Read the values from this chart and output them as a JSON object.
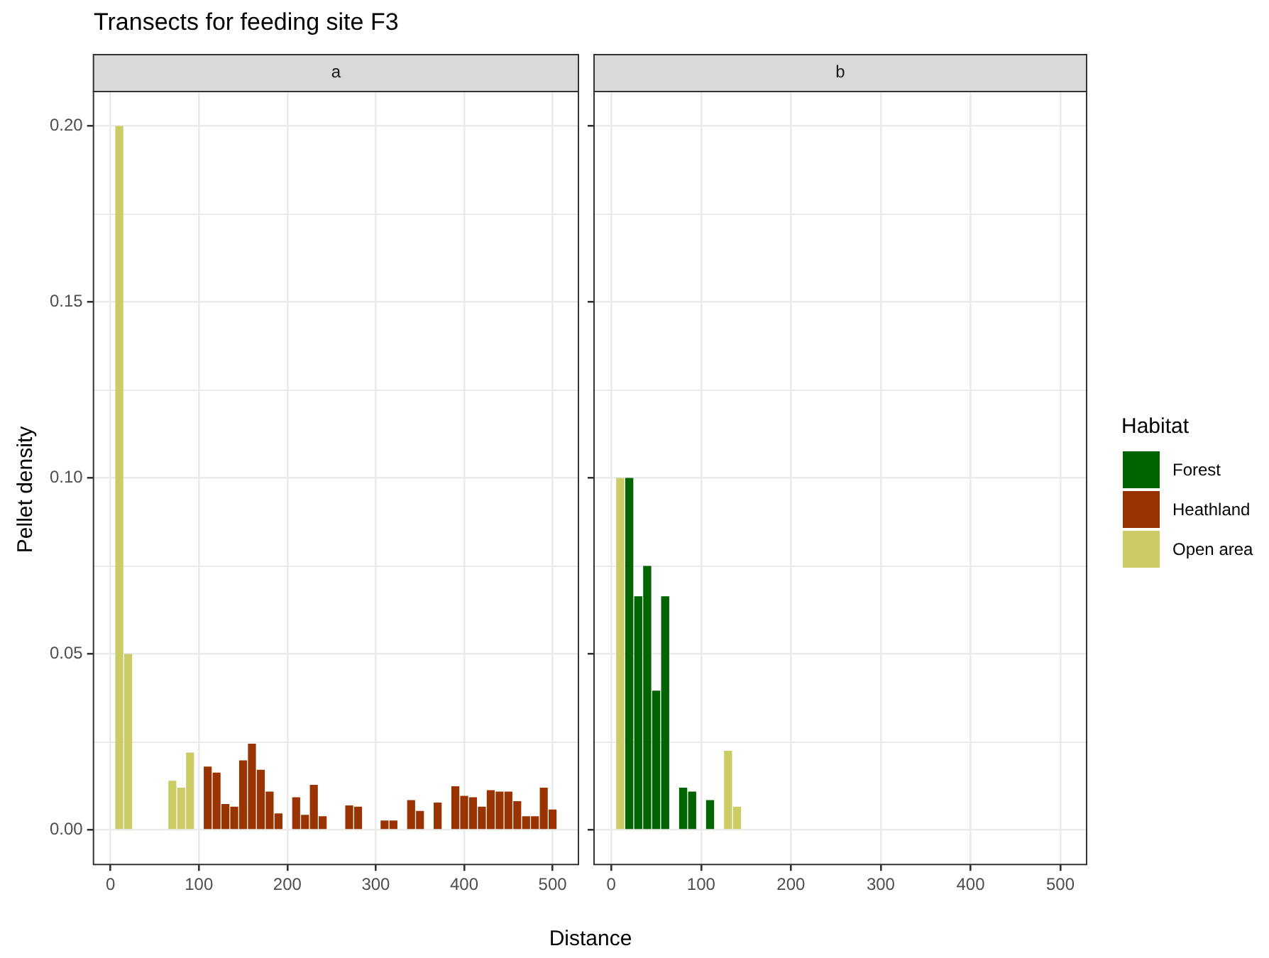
{
  "chart_data": [
    {
      "type": "bar",
      "title": "Transects for feeding site F3",
      "subtitle": "a",
      "xlabel": "Distance",
      "ylabel": "Pellet density",
      "grid": true,
      "legend": "right",
      "legend_title": "Habitat",
      "xlim": [
        -20,
        530
      ],
      "xticks": [
        0,
        100,
        200,
        300,
        400,
        500
      ],
      "ylim": [
        -0.01,
        0.21
      ],
      "yticks": [
        {
          "value": 0,
          "label": "0.00"
        },
        {
          "value": 0.025,
          "label": null
        },
        {
          "value": 0.05,
          "label": "0.05"
        },
        {
          "value": 0.075,
          "label": null
        },
        {
          "value": 0.1,
          "label": "0.10"
        },
        {
          "value": 0.125,
          "label": null
        },
        {
          "value": 0.15,
          "label": "0.15"
        },
        {
          "value": 0.175,
          "label": null
        },
        {
          "value": 0.2,
          "label": "0.20"
        }
      ],
      "series": [
        {
          "name": "Heathland",
          "color": "#993300",
          "x": [
            110,
            120,
            130,
            140,
            150,
            160,
            170,
            180,
            190,
            210,
            220,
            230,
            240,
            270,
            280,
            310,
            320,
            340,
            350,
            370,
            390,
            400,
            410,
            420,
            430,
            440,
            450,
            460,
            470,
            480,
            490,
            500
          ],
          "values": [
            0.018,
            0.0163,
            0.0074,
            0.0066,
            0.0198,
            0.0245,
            0.0171,
            0.0109,
            0.0047,
            0.0093,
            0.0043,
            0.0128,
            0.0039,
            0.007,
            0.0066,
            0.0027,
            0.0027,
            0.0085,
            0.0054,
            0.0078,
            0.0124,
            0.0097,
            0.0093,
            0.0066,
            0.0113,
            0.0109,
            0.0109,
            0.0082,
            0.0039,
            0.0039,
            0.012,
            0.0058
          ]
        },
        {
          "name": "Open area",
          "color": "#cccc66",
          "x": [
            10,
            20,
            70,
            80,
            90
          ],
          "values": [
            0.2,
            0.05,
            0.014,
            0.012,
            0.022
          ]
        }
      ]
    },
    {
      "type": "bar",
      "subtitle": "b",
      "grid": true,
      "tick_labels": "x",
      "xlim": [
        -20,
        530
      ],
      "xticks": [
        0,
        100,
        200,
        300,
        400,
        500
      ],
      "ylim": [
        -0.01,
        0.21
      ],
      "yticks": [
        0,
        {
          "value": 0.025,
          "label": null
        },
        0.05,
        {
          "value": 0.075,
          "label": null
        },
        0.1,
        {
          "value": 0.125,
          "label": null
        },
        0.15,
        {
          "value": 0.175,
          "label": null
        },
        0.2
      ],
      "series": [
        {
          "name": "Forest",
          "color": "#006400",
          "x": [
            20,
            30,
            40,
            50,
            60,
            80,
            90,
            110
          ],
          "values": [
            0.1,
            0.0664,
            0.075,
            0.0396,
            0.0664,
            0.012,
            0.0109,
            0.0085
          ]
        },
        {
          "name": "Open area",
          "color": "#cccc66",
          "x": [
            10,
            130,
            140
          ],
          "values": [
            0.1,
            0.0225,
            0.0066
          ]
        }
      ]
    }
  ]
}
